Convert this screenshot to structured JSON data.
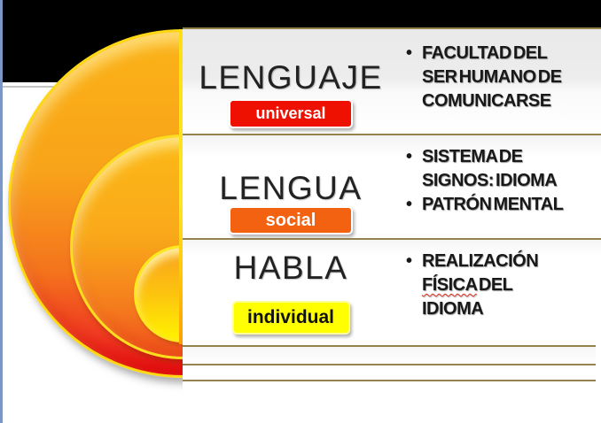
{
  "slide": {
    "background": "#ffffff",
    "left_edge_color": "#7c97c4",
    "top_bar_color": "#000000",
    "divider_color": "#95834d",
    "bullet_glyph": "•"
  },
  "diagram": {
    "type": "nested-half-circles",
    "rim_color": "#ffe115",
    "rings": [
      {
        "name": "outer-ring-lenguaje",
        "top_color": "#fbb216",
        "bottom_color": "#e60b12"
      },
      {
        "name": "middle-ring-lengua",
        "top_color": "#fcb916",
        "bottom_color": "#ef4d1d"
      },
      {
        "name": "inner-circle-habla",
        "top_color": "#f9a11d",
        "bottom_color": "#fff200"
      }
    ]
  },
  "rows": [
    {
      "title": "LENGUAJE",
      "badge": {
        "label": "universal",
        "bg": "#ee1000",
        "text_color": "#ffffff"
      },
      "bullets": [
        {
          "lines": [
            "FACULTAD DEL",
            "SER HUMANO DE",
            "COMUNICARSE"
          ]
        }
      ]
    },
    {
      "title": "LENGUA",
      "badge": {
        "label": "social",
        "bg": "#f26211",
        "text_color": "#ffffff"
      },
      "bullets": [
        {
          "lines": [
            "SISTEMA DE",
            "SIGNOS: IDIOMA"
          ]
        },
        {
          "lines": [
            "PATRÓN MENTAL"
          ]
        }
      ]
    },
    {
      "title": "HABLA",
      "badge": {
        "label": "individual",
        "bg": "#ffff00",
        "text_color": "#111111"
      },
      "bullets": [
        {
          "lines": [
            "REALIZACIÓN",
            [
              "FÍSICA",
              " DEL"
            ],
            "IDIOMA"
          ],
          "misspelled_word": "FÍSICA"
        }
      ]
    }
  ],
  "empty_rows_count": 2
}
